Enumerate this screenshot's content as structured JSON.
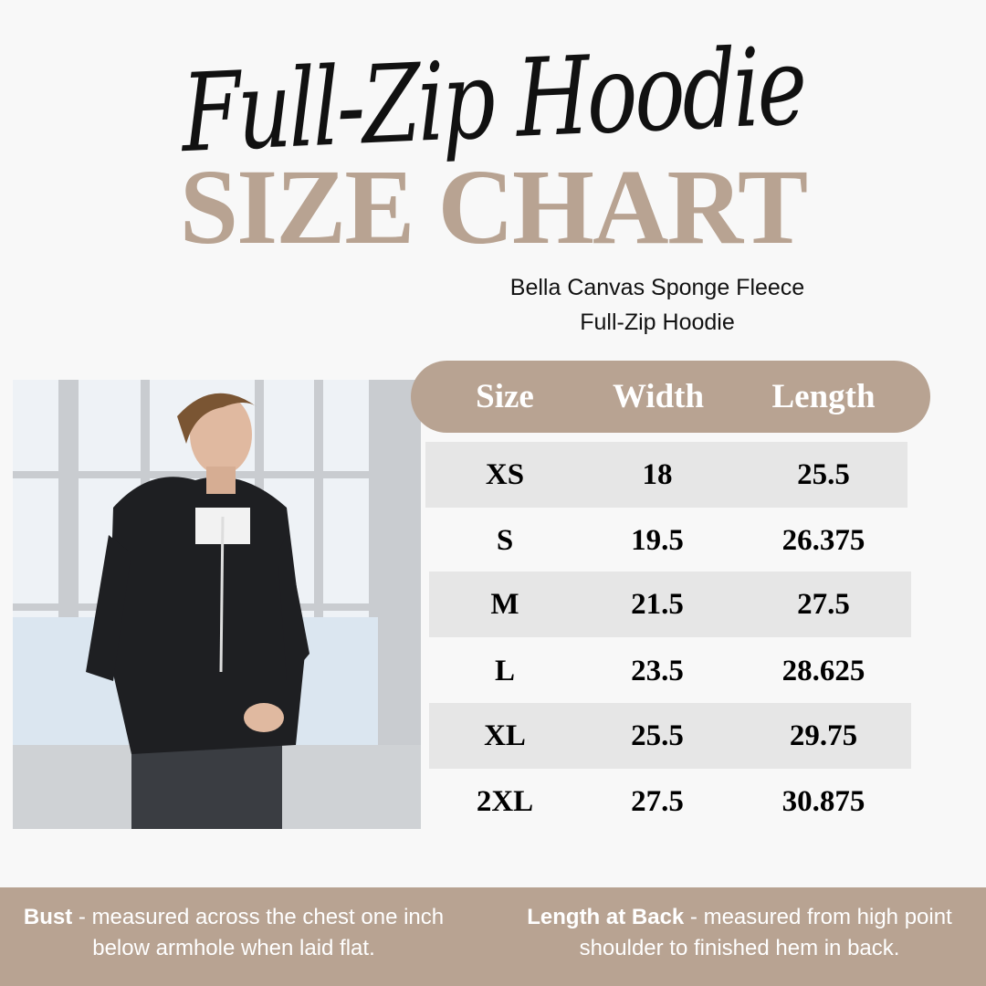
{
  "header": {
    "script_title": "Full-Zip Hoodie",
    "main_title": "SIZE CHART",
    "subtitle_line1": "Bella Canvas Sponge Fleece",
    "subtitle_line2": "Full-Zip Hoodie"
  },
  "photo": {
    "description_icon": "model-photo"
  },
  "table": {
    "columns": [
      "Size",
      "Width",
      "Length"
    ],
    "rows": [
      [
        "XS",
        "18",
        "25.5"
      ],
      [
        "S",
        "19.5",
        "26.375"
      ],
      [
        "M",
        "21.5",
        "27.5"
      ],
      [
        "L",
        "23.5",
        "28.625"
      ],
      [
        "XL",
        "25.5",
        "29.75"
      ],
      [
        "2XL",
        "27.5",
        "30.875"
      ]
    ]
  },
  "footer": {
    "bust_term": "Bust",
    "bust_text": " - measured across the chest one inch below armhole when laid flat.",
    "length_term": "Length at Back",
    "length_text": " - measured from high point shoulder to finished hem in back."
  },
  "colors": {
    "accent": "#b8a392",
    "background": "#f8f8f8",
    "row_shade": "#e6e6e6"
  }
}
